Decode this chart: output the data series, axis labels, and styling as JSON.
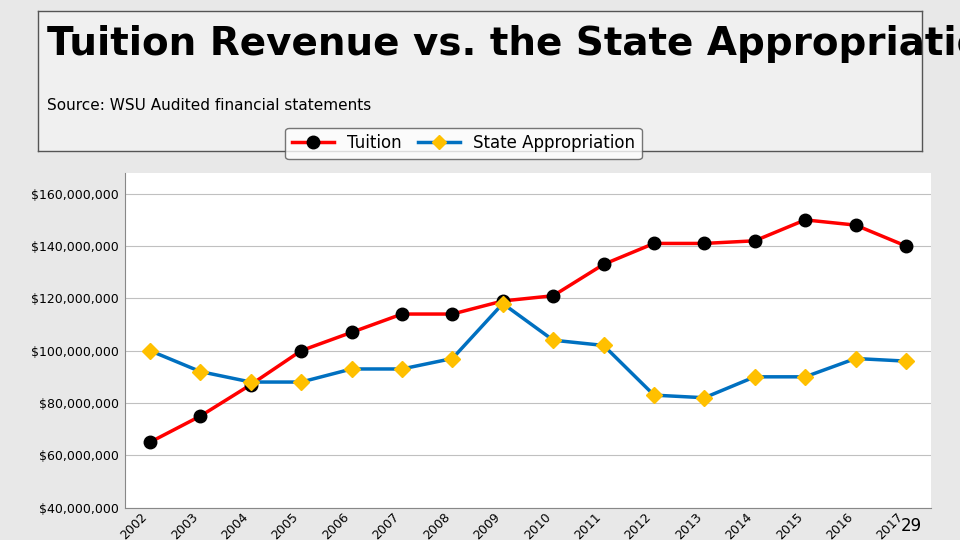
{
  "title": "Tuition Revenue vs. the State Appropriation",
  "subtitle": "Source: WSU Audited financial statements",
  "years": [
    2002,
    2003,
    2004,
    2005,
    2006,
    2007,
    2008,
    2009,
    2010,
    2011,
    2012,
    2013,
    2014,
    2015,
    2016,
    2017
  ],
  "tuition": [
    65000000,
    75000000,
    87000000,
    100000000,
    107000000,
    114000000,
    114000000,
    119000000,
    121000000,
    133000000,
    141000000,
    141000000,
    142000000,
    150000000,
    148000000,
    140000000
  ],
  "state_appropriation": [
    100000000,
    92000000,
    88000000,
    88000000,
    93000000,
    93000000,
    97000000,
    118000000,
    104000000,
    102000000,
    83000000,
    82000000,
    90000000,
    90000000,
    97000000,
    96000000
  ],
  "tuition_color": "#FF0000",
  "tuition_marker_color": "#000000",
  "state_color": "#0070C0",
  "state_marker_color": "#FFC000",
  "legend_tuition": "Tuition",
  "legend_state": "State Appropriation",
  "ylim_min": 40000000,
  "ylim_max": 168000000,
  "ytick_values": [
    40000000,
    60000000,
    80000000,
    100000000,
    120000000,
    140000000,
    160000000
  ],
  "fig_bg_color": "#E8E8E8",
  "title_box_bg": "#F0F0F0",
  "chart_bg": "#FFFFFF",
  "title_fontsize": 28,
  "subtitle_fontsize": 11,
  "legend_fontsize": 12,
  "tick_fontsize": 9,
  "line_width": 2.5,
  "marker_size": 9
}
